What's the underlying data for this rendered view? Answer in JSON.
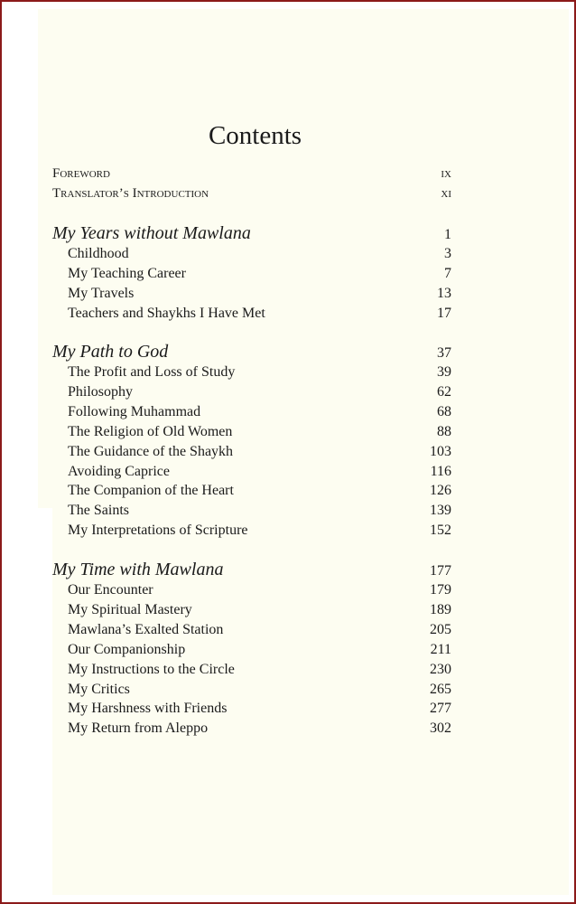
{
  "title": "Contents",
  "front_matter": [
    {
      "label": "Foreword",
      "page": "ix"
    },
    {
      "label": "Translator’s Introduction",
      "page": "xi"
    }
  ],
  "sections": [
    {
      "label": "My Years without Mawlana",
      "page": "1",
      "items": [
        {
          "label": "Childhood",
          "page": "3"
        },
        {
          "label": "My Teaching Career",
          "page": "7"
        },
        {
          "label": "My Travels",
          "page": "13"
        },
        {
          "label": "Teachers and Shaykhs I Have Met",
          "page": "17"
        }
      ]
    },
    {
      "label": "My Path to God",
      "page": "37",
      "items": [
        {
          "label": "The Profit and Loss of Study",
          "page": "39"
        },
        {
          "label": "Philosophy",
          "page": "62"
        },
        {
          "label": "Following Muhammad",
          "page": "68"
        },
        {
          "label": "The Religion of Old Women",
          "page": "88"
        },
        {
          "label": "The Guidance of the Shaykh",
          "page": "103"
        },
        {
          "label": "Avoiding Caprice",
          "page": "116"
        },
        {
          "label": "The Companion of the Heart",
          "page": "126"
        },
        {
          "label": "The Saints",
          "page": "139"
        },
        {
          "label": "My Interpretations of Scripture",
          "page": "152"
        }
      ]
    },
    {
      "label": "My Time with Mawlana",
      "page": "177",
      "items": [
        {
          "label": "Our Encounter",
          "page": "179"
        },
        {
          "label": "My Spiritual Mastery",
          "page": "189"
        },
        {
          "label": "Mawlana’s Exalted Station",
          "page": "205"
        },
        {
          "label": "Our Companionship",
          "page": "211"
        },
        {
          "label": "My Instructions to the Circle",
          "page": "230"
        },
        {
          "label": "My Critics",
          "page": "265"
        },
        {
          "label": "My Harshness with Friends",
          "page": "277"
        },
        {
          "label": "My Return from Aleppo",
          "page": "302"
        }
      ]
    }
  ]
}
